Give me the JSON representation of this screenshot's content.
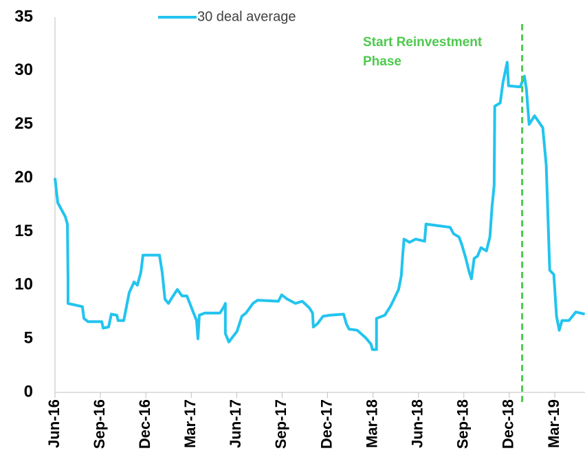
{
  "chart_data": {
    "type": "line",
    "xlim": [
      0,
      35
    ],
    "ylim": [
      0,
      35
    ],
    "yticks": [
      0,
      5,
      10,
      15,
      20,
      25,
      30,
      35
    ],
    "xticks": [
      {
        "value": 0,
        "label": "Jun-16"
      },
      {
        "value": 3,
        "label": "Sep-16"
      },
      {
        "value": 6,
        "label": "Dec-16"
      },
      {
        "value": 9,
        "label": "Mar-17"
      },
      {
        "value": 12,
        "label": "Jun-17"
      },
      {
        "value": 15,
        "label": "Sep-17"
      },
      {
        "value": 18,
        "label": "Dec-17"
      },
      {
        "value": 21,
        "label": "Mar-18"
      },
      {
        "value": 24,
        "label": "Jun-18"
      },
      {
        "value": 27,
        "label": "Sep-18"
      },
      {
        "value": 30,
        "label": "Dec-18"
      },
      {
        "value": 33,
        "label": "Mar-19"
      }
    ],
    "legend": "top",
    "series": [
      {
        "name": "30 deal average",
        "color": "#22c4ee",
        "x": [
          0,
          0.18,
          0.68,
          0.82,
          0.86,
          0.86,
          1.81,
          1.91,
          2.18,
          3.09,
          3.18,
          3.54,
          3.72,
          4.08,
          4.17,
          4.54,
          4.72,
          4.9,
          5.22,
          5.44,
          5.67,
          5.81,
          6.9,
          7.08,
          7.26,
          7.49,
          7.8,
          8.08,
          8.39,
          8.71,
          9.07,
          9.35,
          9.44,
          9.53,
          9.89,
          10.89,
          11.16,
          11.25,
          11.25,
          11.48,
          12.02,
          12.34,
          12.61,
          13.07,
          13.38,
          14.75,
          14.97,
          15.34,
          15.88,
          16.33,
          16.79,
          17.01,
          17.06,
          17.33,
          17.7,
          18.15,
          19.06,
          19.24,
          19.42,
          19.96,
          20.51,
          20.87,
          20.96,
          21.23,
          21.23,
          21.78,
          22.14,
          22.32,
          22.69,
          22.87,
          22.96,
          23.05,
          23.41,
          23.82,
          24.41,
          24.5,
          26.09,
          26.32,
          26.68,
          26.86,
          27.13,
          27.36,
          27.5,
          27.68,
          27.9,
          28.13,
          28.49,
          28.72,
          28.86,
          29.0,
          29.04,
          29.4,
          29.58,
          29.86,
          29.95,
          30.72,
          31.0,
          31.13,
          31.31,
          31.67,
          32.21,
          32.44,
          32.67,
          32.94,
          33.12,
          33.3,
          33.48,
          33.94,
          34.39,
          34.98
        ],
        "values": [
          20.0,
          17.7,
          16.4,
          15.7,
          10.6,
          8.3,
          8.0,
          6.9,
          6.6,
          6.6,
          6.0,
          6.1,
          7.3,
          7.2,
          6.7,
          6.7,
          8.0,
          9.3,
          10.3,
          10.0,
          11.2,
          12.8,
          12.8,
          11.2,
          8.7,
          8.3,
          9.0,
          9.6,
          9.0,
          9.0,
          7.7,
          6.7,
          5.0,
          7.2,
          7.4,
          7.4,
          8.0,
          8.3,
          5.5,
          4.7,
          5.7,
          7.1,
          7.4,
          8.3,
          8.6,
          8.5,
          9.1,
          8.7,
          8.3,
          8.5,
          7.9,
          7.4,
          6.1,
          6.4,
          7.1,
          7.2,
          7.3,
          6.4,
          5.9,
          5.8,
          5.1,
          4.5,
          4.0,
          4.0,
          6.9,
          7.2,
          8.0,
          8.5,
          9.6,
          10.9,
          12.8,
          14.3,
          14.0,
          14.3,
          14.1,
          15.7,
          15.4,
          14.8,
          14.5,
          13.8,
          12.5,
          11.2,
          10.6,
          12.5,
          12.7,
          13.5,
          13.2,
          14.5,
          17.3,
          19.3,
          26.7,
          27.0,
          28.9,
          30.8,
          28.6,
          28.5,
          29.5,
          28.3,
          25.0,
          25.8,
          24.7,
          21.2,
          11.4,
          11.0,
          7.1,
          5.8,
          6.7,
          6.7,
          7.5,
          7.3
        ]
      }
    ],
    "annotation": {
      "text": [
        "Start Reinvestment",
        "Phase"
      ],
      "x": 30.85,
      "color": "#4ec94e"
    }
  }
}
